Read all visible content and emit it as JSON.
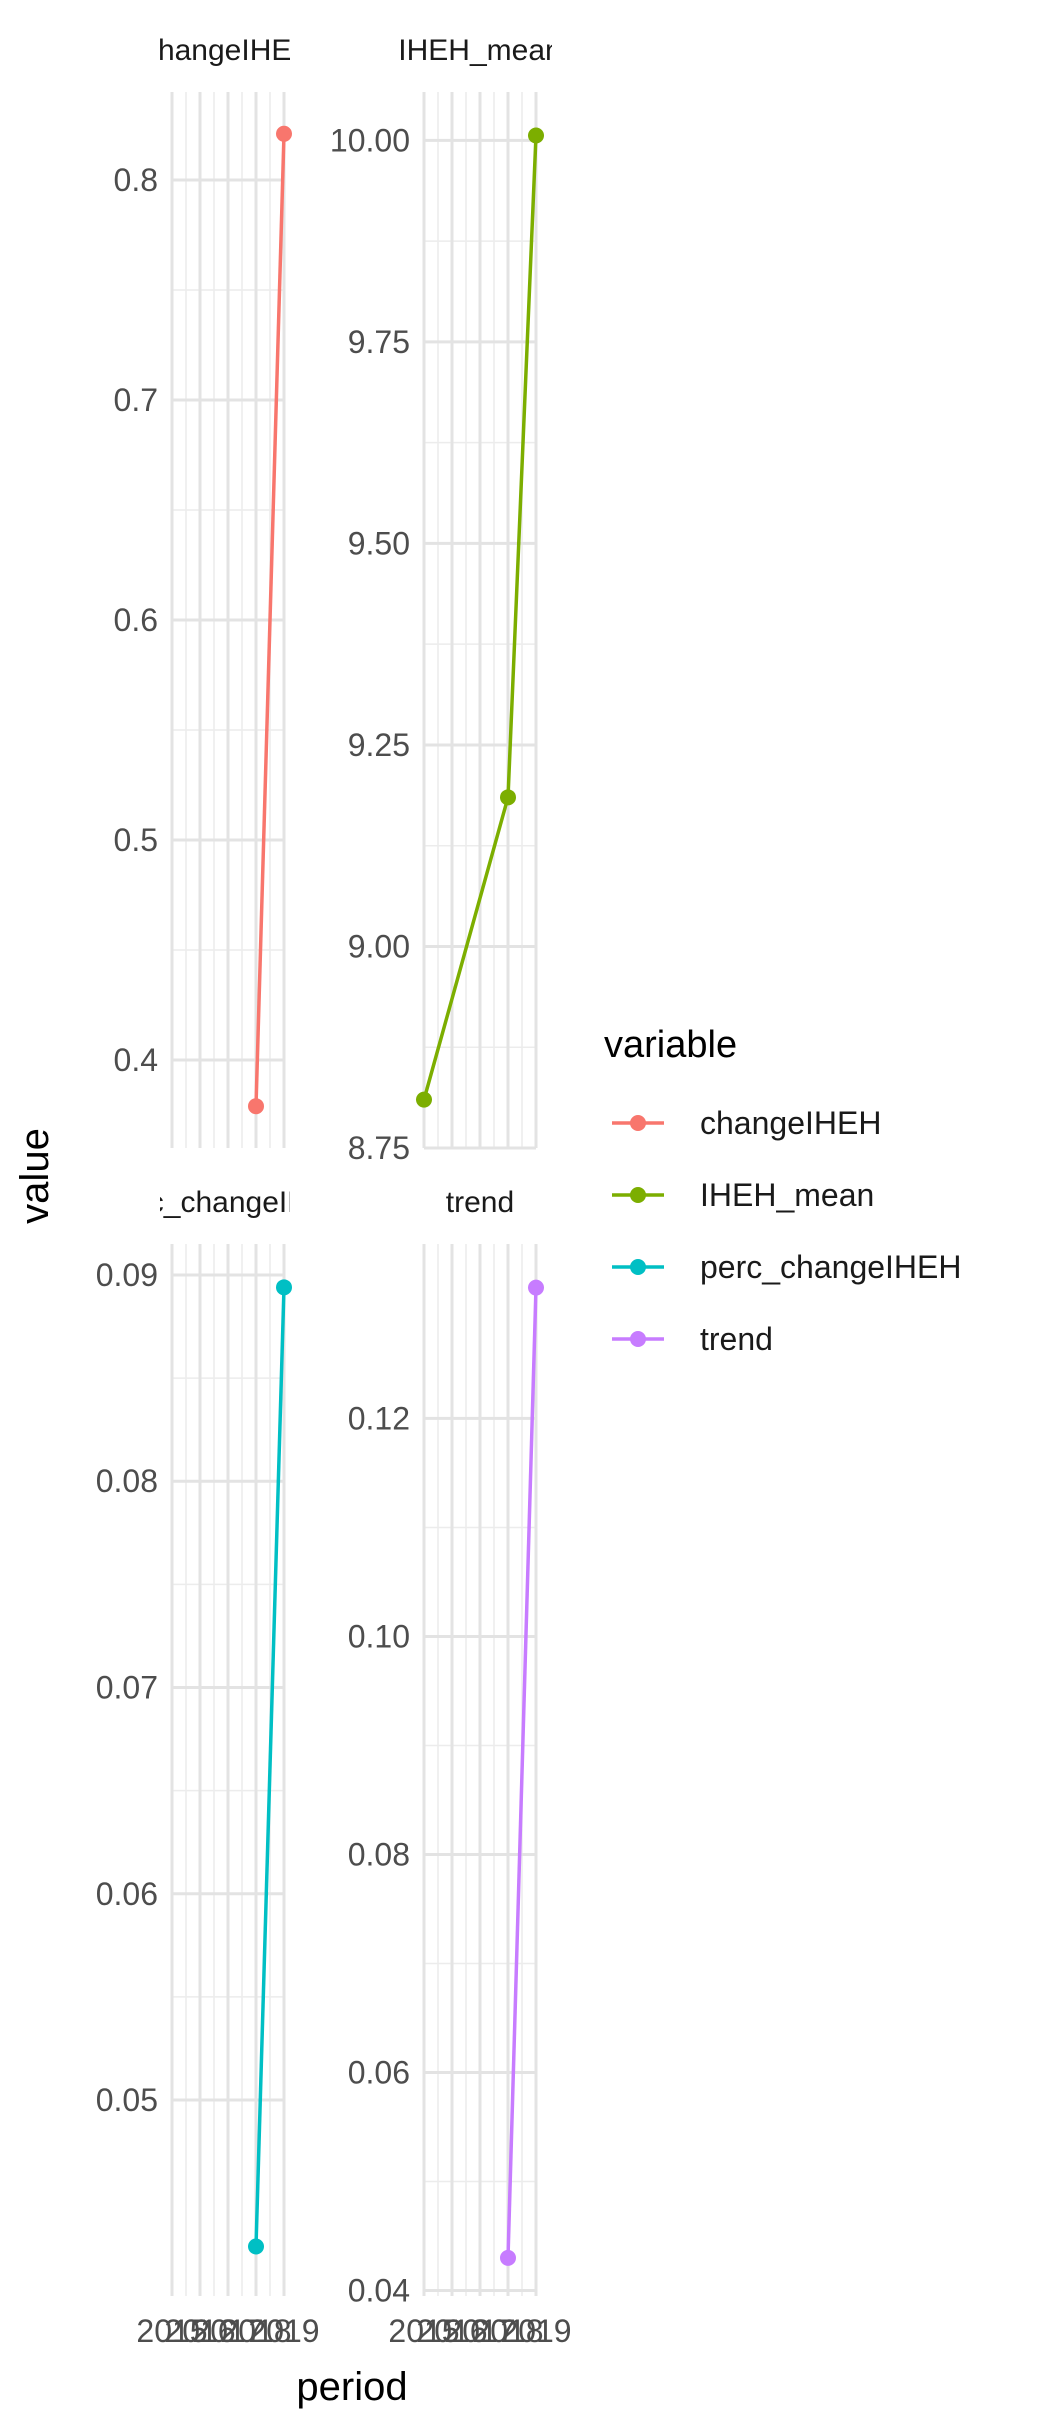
{
  "chart_data": {
    "type": "line",
    "layout": "facet_wrap",
    "xlabel": "period",
    "ylabel": "value",
    "x_tick_labels": [
      "2015",
      "2016",
      "2017",
      "2018",
      "2019"
    ],
    "xlim": [
      2015,
      2019
    ],
    "legend": {
      "title": "variable",
      "position": "right",
      "entries": [
        "changeIHEH",
        "IHEH_mean",
        "perc_changeIHEH",
        "trend"
      ]
    },
    "grid": true,
    "facets": [
      {
        "name": "changeIHEH",
        "color": "#F8766D",
        "ylim": [
          0.36,
          0.84
        ],
        "y_ticks": [
          0.4,
          0.5,
          0.6,
          0.7,
          0.8
        ],
        "y_tick_labels": [
          "0.4",
          "0.5",
          "0.6",
          "0.7",
          "0.8"
        ],
        "points": [
          {
            "x": 2018,
            "y": 0.379
          },
          {
            "x": 2019,
            "y": 0.821
          }
        ]
      },
      {
        "name": "IHEH_mean",
        "color": "#7CAE00",
        "ylim": [
          8.75,
          10.06
        ],
        "y_ticks": [
          8.75,
          9.0,
          9.25,
          9.5,
          9.75,
          10.0
        ],
        "y_tick_labels": [
          "8.75",
          "9.00",
          "9.25",
          "9.50",
          "9.75",
          "10.00"
        ],
        "points": [
          {
            "x": 2015,
            "y": 8.81
          },
          {
            "x": 2018,
            "y": 9.185
          },
          {
            "x": 2019,
            "y": 10.006
          }
        ]
      },
      {
        "name": "perc_changeIHEH",
        "color": "#00BFC4",
        "ylim": [
          0.0405,
          0.0915
        ],
        "y_ticks": [
          0.05,
          0.06,
          0.07,
          0.08,
          0.09
        ],
        "y_tick_labels": [
          "0.05",
          "0.06",
          "0.07",
          "0.08",
          "0.09"
        ],
        "points": [
          {
            "x": 2018,
            "y": 0.0429
          },
          {
            "x": 2019,
            "y": 0.0894
          }
        ]
      },
      {
        "name": "trend",
        "color": "#C77CFF",
        "ylim": [
          0.0395,
          0.136
        ],
        "y_ticks": [
          0.04,
          0.06,
          0.08,
          0.1,
          0.12
        ],
        "y_tick_labels": [
          "0.04",
          "0.06",
          "0.08",
          "0.10",
          "0.12"
        ],
        "points": [
          {
            "x": 2018,
            "y": 0.043
          },
          {
            "x": 2019,
            "y": 0.132
          }
        ]
      }
    ]
  }
}
